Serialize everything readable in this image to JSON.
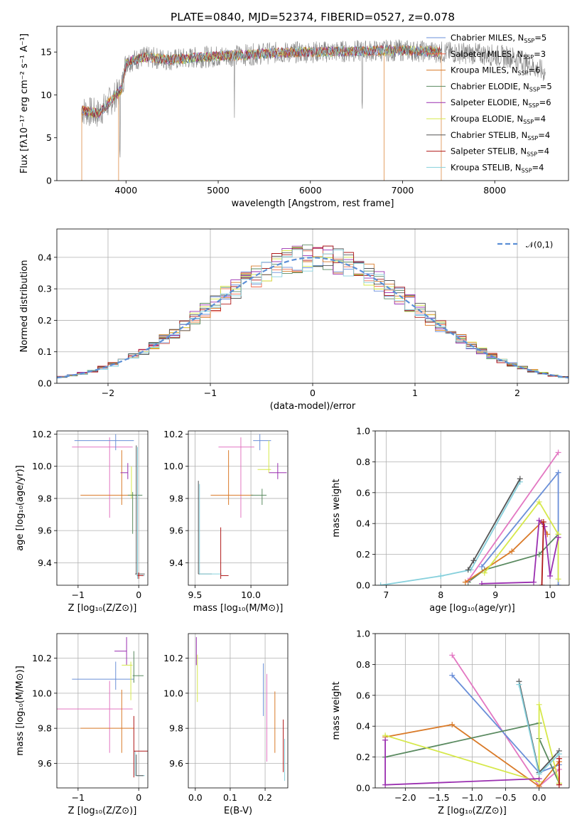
{
  "title": "PLATE=0840, MJD=52374, FIBERID=0527, z=0.078",
  "chart_data": [
    {
      "id": "spectrum",
      "type": "line",
      "xlabel": "wavelength [Angstrom, rest frame]",
      "ylabel": "Flux [fλ10⁻¹⁷ erg cm⁻² s⁻¹ A⁻¹]",
      "xlim": [
        3250,
        8800
      ],
      "ylim": [
        0,
        18
      ],
      "xticks": [
        4000,
        5000,
        6000,
        7000,
        8000
      ],
      "yticks": [
        0,
        5,
        10,
        15
      ],
      "series": [
        {
          "name": "Chabrier MILES, N",
          "sub": "SSP",
          "suffix": "=5",
          "color": "#6a8fd8"
        },
        {
          "name": "Salpeter MILES, N",
          "sub": "SSP",
          "suffix": "=3",
          "color": "#f06d50"
        },
        {
          "name": "Kroupa MILES, N",
          "sub": "SSP",
          "suffix": "=6",
          "color": "#d97a28"
        },
        {
          "name": "Chabrier ELODIE, N",
          "sub": "SSP",
          "suffix": "=5",
          "color": "#5a8a60"
        },
        {
          "name": "Salpeter ELODIE, N",
          "sub": "SSP",
          "suffix": "=6",
          "color": "#9a2fb0"
        },
        {
          "name": "Kroupa ELODIE, N",
          "sub": "SSP",
          "suffix": "=4",
          "color": "#d6e84a"
        },
        {
          "name": "Chabrier STELIB, N",
          "sub": "SSP",
          "suffix": "=4",
          "color": "#555555"
        },
        {
          "name": "Salpeter STELIB, N",
          "sub": "SSP",
          "suffix": "=4",
          "color": "#b01818"
        },
        {
          "name": "Kroupa STELIB, N",
          "sub": "SSP",
          "suffix": "=4",
          "color": "#86d0dc"
        }
      ],
      "continuum": [
        [
          3520,
          8.2
        ],
        [
          3700,
          7.8
        ],
        [
          3950,
          10.6
        ],
        [
          4000,
          13.8
        ],
        [
          4200,
          14.4
        ],
        [
          4500,
          14.1
        ],
        [
          4800,
          14.4
        ],
        [
          5200,
          14.6
        ],
        [
          5600,
          14.9
        ],
        [
          6000,
          15.0
        ],
        [
          6500,
          15.1
        ],
        [
          7000,
          15.2
        ],
        [
          7400,
          15.0
        ],
        [
          7800,
          14.8
        ],
        [
          8200,
          14.4
        ],
        [
          8550,
          12.6
        ]
      ]
    },
    {
      "id": "residuals",
      "type": "histogram",
      "xlabel": "(data-model)/error",
      "ylabel": "Normed distribution",
      "xlim": [
        -2.5,
        2.5
      ],
      "ylim": [
        0,
        0.49
      ],
      "xticks": [
        -2,
        -1,
        0,
        1,
        2
      ],
      "yticks": [
        0.0,
        0.1,
        0.2,
        0.3,
        0.4
      ],
      "bin_width": 0.1,
      "legend": "𝒩(0,1)",
      "reference_curve": "normal(0,1)"
    },
    {
      "id": "age_vs_Z",
      "type": "scatter",
      "xlabel": "Z [log₁₀(Z/Z⊙)]",
      "ylabel": "age  [log₁₀(age/yr)]",
      "xlim": [
        -1.35,
        0.15
      ],
      "ylim": [
        9.26,
        10.22
      ],
      "xticks": [
        -1,
        0
      ],
      "yticks": [
        9.4,
        9.6,
        9.8,
        10.0,
        10.2
      ],
      "points": [
        {
          "x": -0.48,
          "xe": [
            0.62,
            0.38
          ],
          "y": 10.12,
          "ye": [
            0.44,
            0.06
          ],
          "color": "#e377c2"
        },
        {
          "x": -0.38,
          "xe": [
            0.68,
            0.3
          ],
          "y": 10.16,
          "ye": [
            0.06,
            0.04
          ],
          "color": "#6a8fd8"
        },
        {
          "x": -0.28,
          "xe": [
            0.68,
            0.26
          ],
          "y": 9.82,
          "ye": [
            0.06,
            0.28
          ],
          "color": "#d97a28"
        },
        {
          "x": -0.18,
          "xe": [
            0.12,
            0.0
          ],
          "y": 9.96,
          "ye": [
            0.04,
            0.06
          ],
          "color": "#9a2fb0"
        },
        {
          "x": -0.12,
          "xe": [
            0.04,
            0.04
          ],
          "y": 9.82,
          "ye": [
            0.02,
            0.18
          ],
          "color": "#d6e84a"
        },
        {
          "x": -0.1,
          "xe": [
            0.08,
            0.16
          ],
          "y": 9.82,
          "ye": [
            0.24,
            0.02
          ],
          "color": "#5a8a60"
        },
        {
          "x": -0.04,
          "xe": [
            0.02,
            0.14
          ],
          "y": 9.33,
          "ye": [
            0.0,
            0.8
          ],
          "color": "#555555"
        },
        {
          "x": -0.02,
          "xe": [
            0.02,
            0.12
          ],
          "y": 9.32,
          "ye": [
            0.02,
            0.8
          ],
          "color": "#86d0dc"
        },
        {
          "x": 0.0,
          "xe": [
            0.02,
            0.08
          ],
          "y": 9.32,
          "ye": [
            0.02,
            0.02
          ],
          "color": "#b01818"
        }
      ]
    },
    {
      "id": "age_vs_mass",
      "type": "scatter",
      "xlabel": "mass [log₁₀(M/M⊙)]",
      "ylabel": "",
      "xlim": [
        9.44,
        10.33
      ],
      "ylim": [
        9.26,
        10.22
      ],
      "xticks": [
        9.5,
        10.0
      ],
      "yticks": [
        9.4,
        9.6,
        9.8,
        10.0,
        10.2
      ],
      "points": [
        {
          "x": 9.91,
          "xe": [
            0.2,
            0.12
          ],
          "y": 10.12,
          "ye": [
            0.44,
            0.06
          ],
          "color": "#e377c2"
        },
        {
          "x": 10.08,
          "xe": [
            0.06,
            0.1
          ],
          "y": 10.16,
          "ye": [
            0.06,
            0.04
          ],
          "color": "#6a8fd8"
        },
        {
          "x": 9.8,
          "xe": [
            0.16,
            0.22
          ],
          "y": 9.82,
          "ye": [
            0.06,
            0.28
          ],
          "color": "#d97a28"
        },
        {
          "x": 10.24,
          "xe": [
            0.08,
            0.08
          ],
          "y": 9.96,
          "ye": [
            0.04,
            0.06
          ],
          "color": "#9a2fb0"
        },
        {
          "x": 10.16,
          "xe": [
            0.1,
            0.02
          ],
          "y": 9.98,
          "ye": [
            0.02,
            0.18
          ],
          "color": "#d6e84a"
        },
        {
          "x": 10.1,
          "xe": [
            0.1,
            0.04
          ],
          "y": 9.82,
          "ye": [
            0.06,
            0.04
          ],
          "color": "#5a8a60"
        },
        {
          "x": 9.53,
          "xe": [
            0.0,
            0.12
          ],
          "y": 9.33,
          "ye": [
            0.0,
            0.58
          ],
          "color": "#555555"
        },
        {
          "x": 9.54,
          "xe": [
            0.0,
            0.2
          ],
          "y": 9.33,
          "ye": [
            0.0,
            0.56
          ],
          "color": "#86d0dc"
        },
        {
          "x": 9.73,
          "xe": [
            0.0,
            0.07
          ],
          "y": 9.32,
          "ye": [
            0.02,
            0.3
          ],
          "color": "#b01818"
        }
      ]
    },
    {
      "id": "massweight_vs_age",
      "type": "line",
      "xlabel": "age  [log₁₀(age/yr)]",
      "ylabel": "mass weight",
      "xlim": [
        6.8,
        10.35
      ],
      "ylim": [
        0,
        1.0
      ],
      "xticks": [
        7,
        8,
        9,
        10
      ],
      "yticks": [
        0.0,
        0.2,
        0.4,
        0.6,
        0.8,
        1.0
      ],
      "series": [
        {
          "color": "#5a8a60",
          "x": [
            8.5,
            8.8,
            9.8,
            10.15
          ],
          "y": [
            0.02,
            0.1,
            0.2,
            0.33
          ]
        },
        {
          "color": "#86d0dc",
          "x": [
            6.9,
            8.0,
            8.55,
            9.45
          ],
          "y": [
            0.0,
            0.06,
            0.1,
            0.67
          ]
        },
        {
          "color": "#555555",
          "x": [
            8.5,
            8.6,
            9.45
          ],
          "y": [
            0.1,
            0.16,
            0.69
          ]
        },
        {
          "color": "#6a8fd8",
          "x": [
            8.75,
            10.15,
            10.15
          ],
          "y": [
            0.12,
            0.73,
            0.0
          ]
        },
        {
          "color": "#e377c2",
          "x": [
            8.5,
            10.15
          ],
          "y": [
            0.03,
            0.86
          ]
        },
        {
          "color": "#d97a28",
          "x": [
            8.45,
            9.3,
            9.85,
            9.95
          ],
          "y": [
            0.02,
            0.22,
            0.41,
            0.33
          ]
        },
        {
          "color": "#d6e84a",
          "x": [
            8.8,
            9.8,
            10.15,
            10.15
          ],
          "y": [
            0.08,
            0.54,
            0.33,
            0.04
          ]
        },
        {
          "color": "#9a2fb0",
          "x": [
            8.75,
            9.7,
            9.8,
            9.9,
            10.0,
            10.15
          ],
          "y": [
            0.01,
            0.02,
            0.42,
            0.38,
            0.06,
            0.31
          ]
        },
        {
          "color": "#b01818",
          "x": [
            9.85,
            9.88
          ],
          "y": [
            0.0,
            0.41
          ]
        }
      ]
    },
    {
      "id": "mass_vs_Z",
      "type": "scatter",
      "xlabel": "Z [log₁₀(Z/Z⊙)]",
      "ylabel": "mass [log₁₀(M/M⊙)]",
      "xlim": [
        -1.35,
        0.15
      ],
      "ylim": [
        9.46,
        10.34
      ],
      "xticks": [
        -1,
        0
      ],
      "yticks": [
        9.6,
        9.8,
        10.0,
        10.2
      ],
      "points": [
        {
          "x": -0.48,
          "xe": [
            0.88,
            0.38
          ],
          "y": 9.91,
          "ye": [
            0.25,
            0.16
          ],
          "color": "#e377c2"
        },
        {
          "x": -0.38,
          "xe": [
            0.72,
            0.3
          ],
          "y": 10.08,
          "ye": [
            0.06,
            0.1
          ],
          "color": "#6a8fd8"
        },
        {
          "x": -0.28,
          "xe": [
            0.68,
            0.2
          ],
          "y": 9.8,
          "ye": [
            0.14,
            0.22
          ],
          "color": "#d97a28"
        },
        {
          "x": -0.2,
          "xe": [
            0.2,
            0.0
          ],
          "y": 10.24,
          "ye": [
            0.08,
            0.08
          ],
          "color": "#9a2fb0"
        },
        {
          "x": -0.13,
          "xe": [
            0.15,
            0.03
          ],
          "y": 10.16,
          "ye": [
            0.2,
            0.02
          ],
          "color": "#d6e84a"
        },
        {
          "x": -0.08,
          "xe": [
            0.02,
            0.16
          ],
          "y": 10.1,
          "ye": [
            0.04,
            0.14
          ],
          "color": "#5a8a60"
        },
        {
          "x": -0.06,
          "xe": [
            0.0,
            0.16
          ],
          "y": 9.53,
          "ye": [
            0.0,
            0.14
          ],
          "color": "#86d0dc"
        },
        {
          "x": -0.04,
          "xe": [
            0.0,
            0.12
          ],
          "y": 9.53,
          "ye": [
            0.0,
            0.12
          ],
          "color": "#555555"
        },
        {
          "x": -0.08,
          "xe": [
            0.0,
            0.26
          ],
          "y": 9.67,
          "ye": [
            0.15,
            0.2
          ],
          "color": "#b01818"
        }
      ]
    },
    {
      "id": "mass_vs_EBV",
      "type": "scatter",
      "xlabel": "E(B-V)",
      "ylabel": "",
      "xlim": [
        -0.02,
        0.265
      ],
      "ylim": [
        9.46,
        10.34
      ],
      "xticks": [
        0.0,
        0.1,
        0.2
      ],
      "yticks": [
        9.6,
        9.8,
        10.0,
        10.2
      ],
      "points": [
        {
          "x": 0.003,
          "xe": [
            0,
            0
          ],
          "y": 10.24,
          "ye": [
            0.08,
            0.08
          ],
          "color": "#9a2fb0"
        },
        {
          "x": 0.006,
          "xe": [
            0,
            0
          ],
          "y": 10.1,
          "ye": [
            0.15,
            0.12
          ],
          "color": "#d6e84a"
        },
        {
          "x": 0.195,
          "xe": [
            0,
            0
          ],
          "y": 10.05,
          "ye": [
            0.18,
            0.12
          ],
          "color": "#6a8fd8"
        },
        {
          "x": 0.205,
          "xe": [
            0,
            0
          ],
          "y": 9.91,
          "ye": [
            0.3,
            0.2
          ],
          "color": "#e377c2"
        },
        {
          "x": 0.228,
          "xe": [
            0,
            0
          ],
          "y": 9.82,
          "ye": [
            0.16,
            0.19
          ],
          "color": "#d97a28"
        },
        {
          "x": 0.252,
          "xe": [
            0,
            0
          ],
          "y": 9.75,
          "ye": [
            0.2,
            0.1
          ],
          "color": "#b01818"
        },
        {
          "x": 0.256,
          "xe": [
            0,
            0
          ],
          "y": 9.6,
          "ye": [
            0.1,
            0.14
          ],
          "color": "#86d0dc"
        }
      ]
    },
    {
      "id": "massweight_vs_Z",
      "type": "line",
      "xlabel": "Z [log₁₀(Z/Z⊙)]",
      "ylabel": "mass weight",
      "xlim": [
        -2.45,
        0.45
      ],
      "ylim": [
        0,
        1.0
      ],
      "xticks": [
        -2.0,
        -1.5,
        -1.0,
        -0.5,
        0.0
      ],
      "yticks": [
        0.0,
        0.2,
        0.4,
        0.6,
        0.8,
        1.0
      ],
      "series": [
        {
          "color": "#e377c2",
          "x": [
            -1.3,
            0.0,
            0.3
          ],
          "y": [
            0.86,
            0.01,
            0.12
          ]
        },
        {
          "color": "#6a8fd8",
          "x": [
            -1.3,
            0.0,
            0.3
          ],
          "y": [
            0.73,
            0.1,
            0.15
          ]
        },
        {
          "color": "#d97a28",
          "x": [
            -2.3,
            -1.3,
            0.0,
            0.3
          ],
          "y": [
            0.33,
            0.41,
            0.01,
            0.17
          ]
        },
        {
          "color": "#5a8a60",
          "x": [
            -2.3,
            0.0,
            0.0,
            0.3
          ],
          "y": [
            0.2,
            0.42,
            0.32,
            0.03
          ]
        },
        {
          "color": "#d6e84a",
          "x": [
            -2.3,
            0.0,
            0.0,
            0.3
          ],
          "y": [
            0.34,
            0.04,
            0.54,
            0.03
          ]
        },
        {
          "color": "#9a2fb0",
          "x": [
            -2.3,
            -2.3,
            0.0
          ],
          "y": [
            0.31,
            0.02,
            0.06
          ]
        },
        {
          "color": "#555555",
          "x": [
            -0.3,
            0.0,
            0.3
          ],
          "y": [
            0.69,
            0.1,
            0.24
          ]
        },
        {
          "color": "#86d0dc",
          "x": [
            -0.3,
            0.0,
            0.3
          ],
          "y": [
            0.67,
            0.09,
            0.22
          ]
        },
        {
          "color": "#b01818",
          "x": [
            0.3,
            0.3
          ],
          "y": [
            0.02,
            0.19
          ]
        }
      ]
    }
  ]
}
